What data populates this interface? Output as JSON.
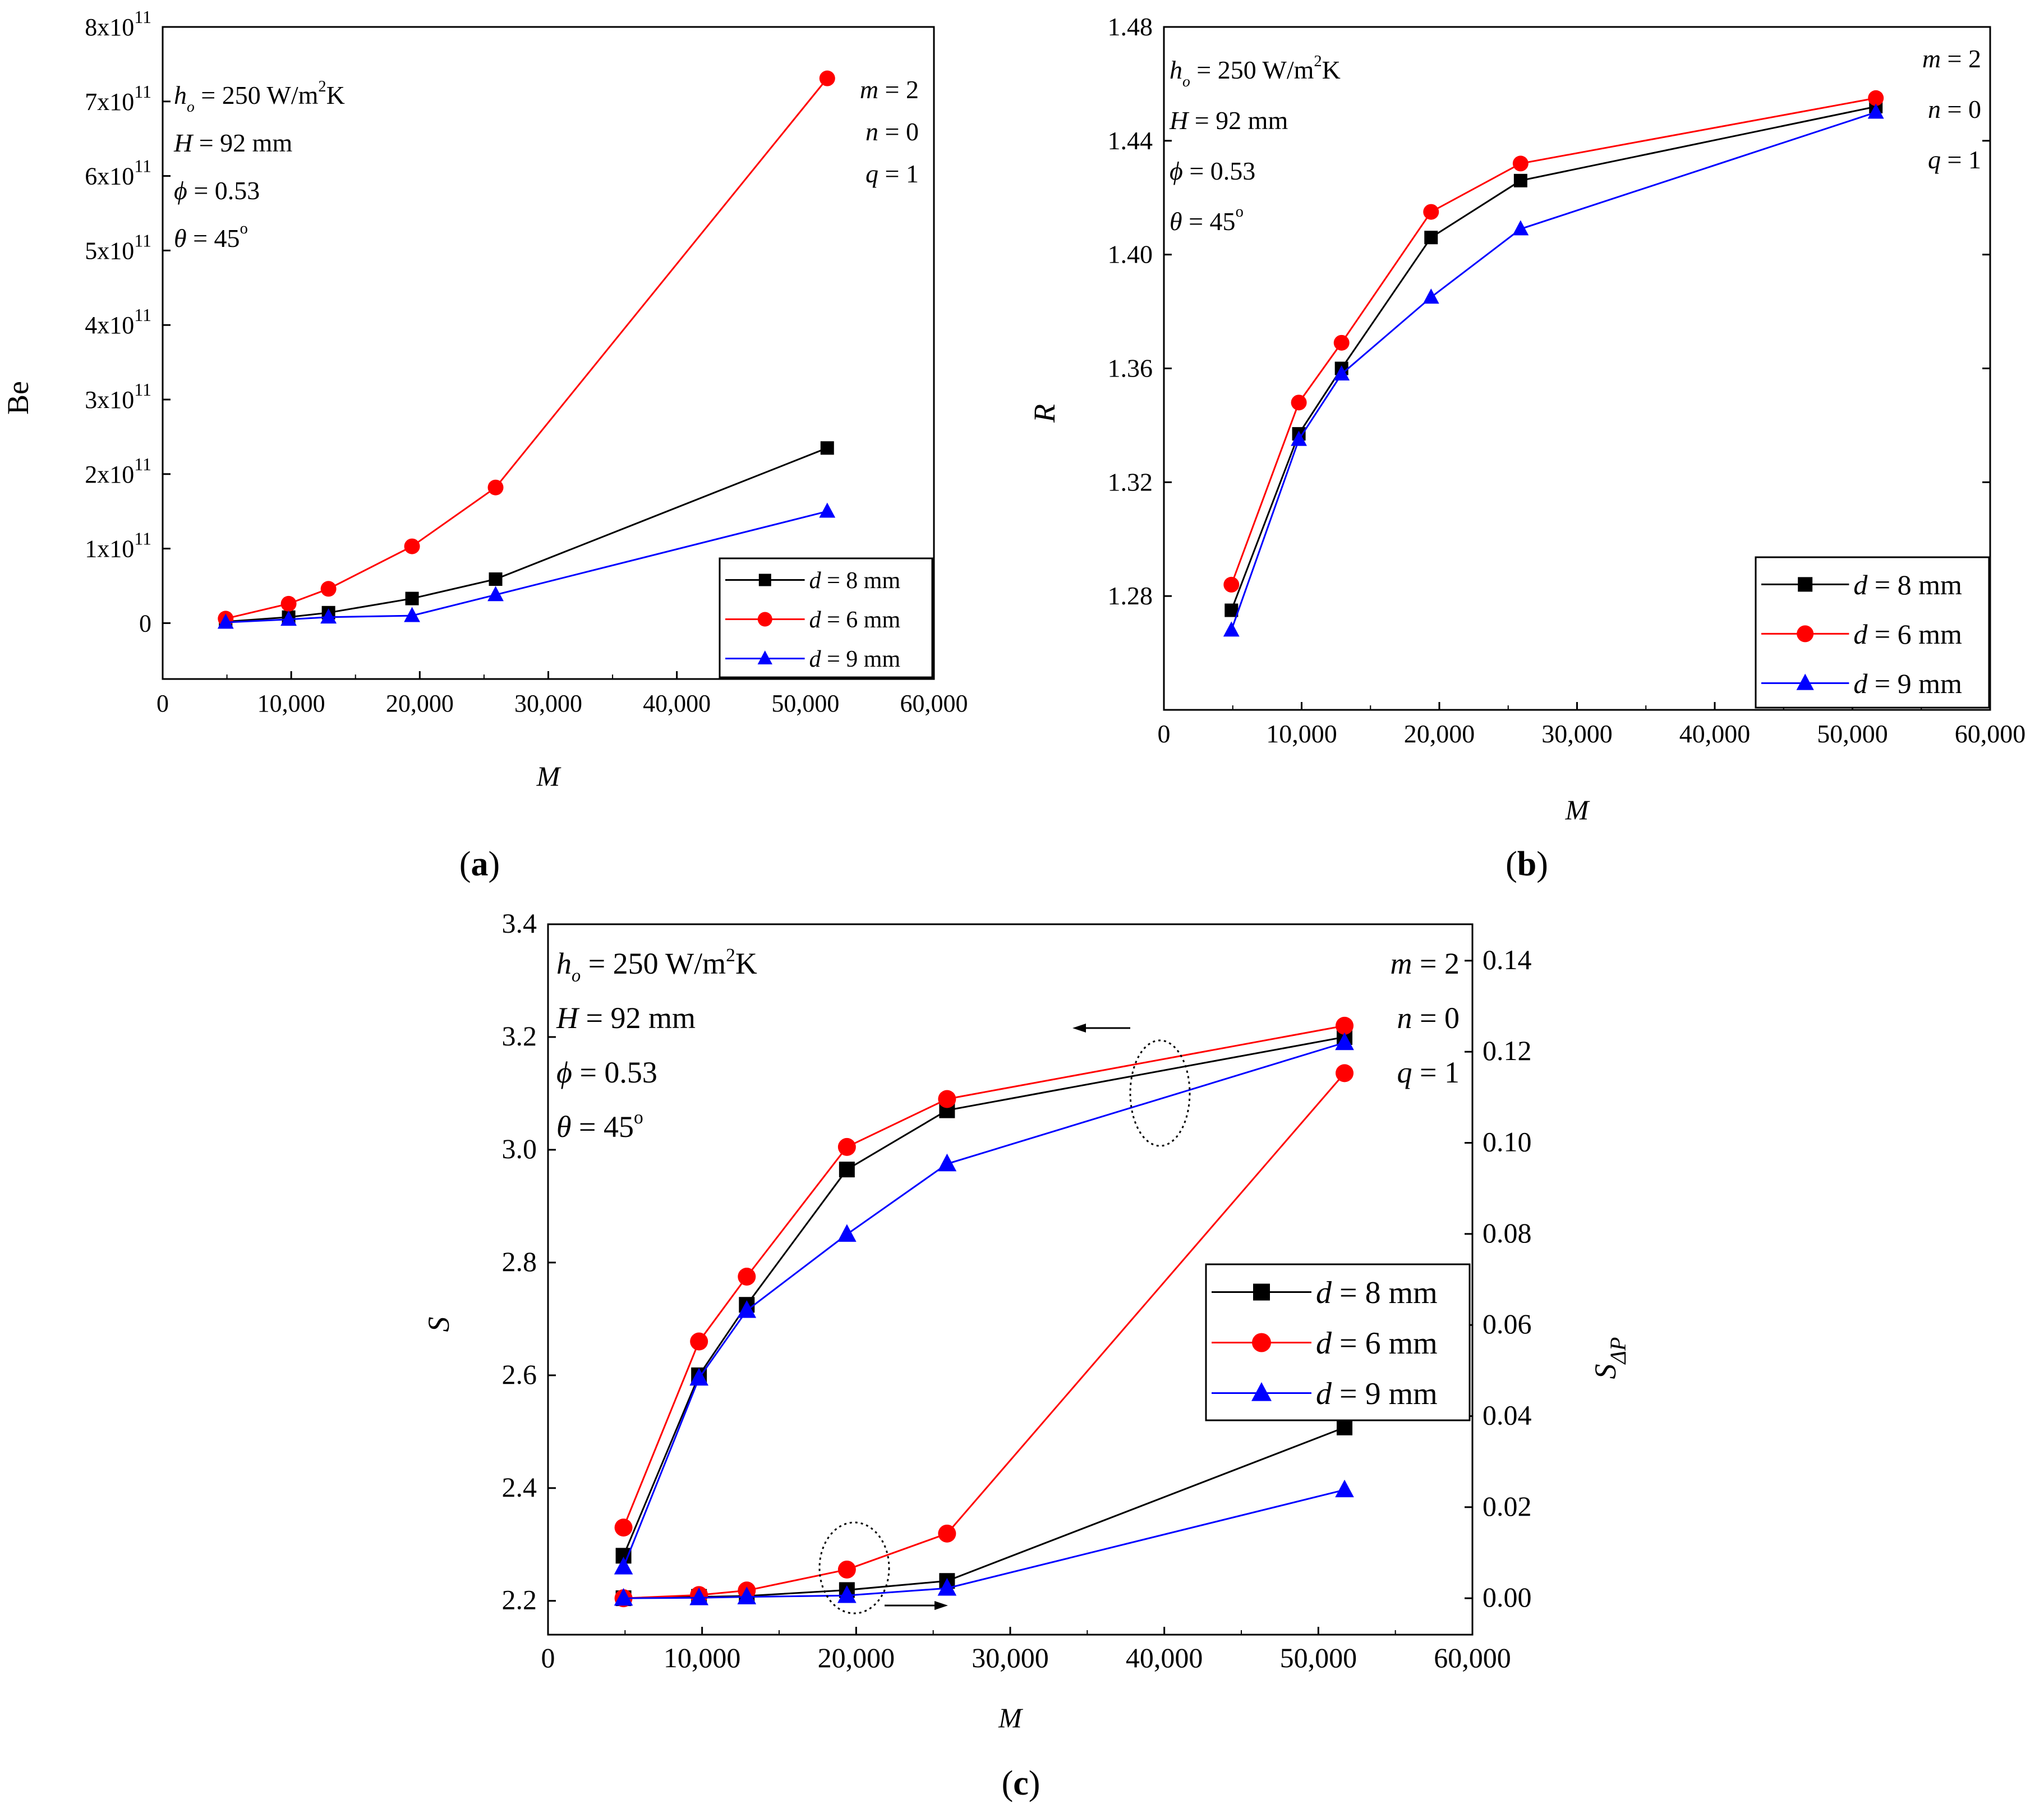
{
  "chart_data": [
    {
      "type": "line",
      "panel_label": "(a)",
      "xlabel": "M",
      "ylabel": "Be",
      "xlim": [
        0,
        60000
      ],
      "ylim": [
        -75000000000,
        800000000000
      ],
      "xticks": [
        0,
        10000,
        20000,
        30000,
        40000,
        50000,
        60000
      ],
      "xtick_labels": [
        "0",
        "10,000",
        "20,000",
        "30,000",
        "40,000",
        "50,000",
        "60,000"
      ],
      "yticks": [
        0,
        100000000000,
        200000000000,
        300000000000,
        400000000000,
        500000000000,
        600000000000,
        700000000000,
        800000000000
      ],
      "ytick_labels": [
        {
          "base": "0",
          "exp": ""
        },
        {
          "base": "1x10",
          "exp": "11"
        },
        {
          "base": "2x10",
          "exp": "11"
        },
        {
          "base": "3x10",
          "exp": "11"
        },
        {
          "base": "4x10",
          "exp": "11"
        },
        {
          "base": "5x10",
          "exp": "11"
        },
        {
          "base": "6x10",
          "exp": "11"
        },
        {
          "base": "7x10",
          "exp": "11"
        },
        {
          "base": "8x10",
          "exp": "11"
        }
      ],
      "annotations_left": [
        "h_o = 250 W/m²K",
        "H = 92 mm",
        "ϕ = 0.53",
        "θ = 45°"
      ],
      "annotations_right": [
        "m = 2",
        "n = 0",
        "q = 1"
      ],
      "legend_position": "bottom-right",
      "x": [
        4900,
        9800,
        12900,
        19400,
        25900,
        51700
      ],
      "series": [
        {
          "name": "d = 8 mm",
          "color": "#000000",
          "marker": "square",
          "values": [
            2000000000,
            8000000000,
            14000000000,
            33000000000,
            59000000000,
            235000000000
          ]
        },
        {
          "name": "d = 6 mm",
          "color": "#ff0000",
          "marker": "circle",
          "values": [
            6000000000,
            26000000000,
            46000000000,
            103000000000,
            182000000000,
            731000000000
          ]
        },
        {
          "name": "d = 9 mm",
          "color": "#0000ff",
          "marker": "triangle",
          "values": [
            1000000000,
            5000000000,
            8000000000,
            10000000000,
            38000000000,
            150000000000
          ]
        }
      ]
    },
    {
      "type": "line",
      "panel_label": "(b)",
      "xlabel": "M",
      "ylabel": "R",
      "xlim": [
        0,
        60000
      ],
      "ylim": [
        1.24,
        1.48
      ],
      "xticks": [
        0,
        10000,
        20000,
        30000,
        40000,
        50000,
        60000
      ],
      "xtick_labels": [
        "0",
        "10,000",
        "20,000",
        "30,000",
        "40,000",
        "50,000",
        "60,000"
      ],
      "yticks": [
        1.28,
        1.32,
        1.36,
        1.4,
        1.44,
        1.48
      ],
      "ytick_labels": [
        "1.28",
        "1.32",
        "1.36",
        "1.40",
        "1.44",
        "1.48"
      ],
      "annotations_left": [
        "h_o = 250 W/m²K",
        "H = 92 mm",
        "ϕ = 0.53",
        "θ = 45°"
      ],
      "annotations_right": [
        "m = 2",
        "n = 0",
        "q = 1"
      ],
      "legend_position": "bottom-right",
      "x": [
        4900,
        9800,
        12900,
        19400,
        25900,
        51700
      ],
      "series": [
        {
          "name": "d = 8 mm",
          "color": "#000000",
          "marker": "square",
          "values": [
            1.275,
            1.337,
            1.36,
            1.406,
            1.426,
            1.452
          ]
        },
        {
          "name": "d = 6 mm",
          "color": "#ff0000",
          "marker": "circle",
          "values": [
            1.284,
            1.348,
            1.369,
            1.415,
            1.432,
            1.455
          ]
        },
        {
          "name": "d = 9 mm",
          "color": "#0000ff",
          "marker": "triangle",
          "values": [
            1.268,
            1.335,
            1.358,
            1.385,
            1.409,
            1.45
          ]
        }
      ]
    },
    {
      "type": "line",
      "panel_label": "(c)",
      "xlabel": "M",
      "ylabel": "S",
      "y2label": "S_ΔP",
      "xlim": [
        0,
        60000
      ],
      "ylim": [
        2.14,
        3.4
      ],
      "y2lim": [
        -0.008,
        0.148
      ],
      "xticks": [
        0,
        10000,
        20000,
        30000,
        40000,
        50000,
        60000
      ],
      "xtick_labels": [
        "0",
        "10,000",
        "20,000",
        "30,000",
        "40,000",
        "50,000",
        "60,000"
      ],
      "yticks": [
        2.2,
        2.4,
        2.6,
        2.8,
        3.0,
        3.2,
        3.4
      ],
      "ytick_labels": [
        "2.2",
        "2.4",
        "2.6",
        "2.8",
        "3.0",
        "3.2",
        "3.4"
      ],
      "y2ticks": [
        0.0,
        0.02,
        0.04,
        0.06,
        0.08,
        0.1,
        0.12,
        0.14
      ],
      "y2tick_labels": [
        "0.00",
        "0.02",
        "0.04",
        "0.06",
        "0.08",
        "0.10",
        "0.12",
        "0.14"
      ],
      "annotations_left": [
        "h_o = 250 W/m²K",
        "H = 92 mm",
        "ϕ = 0.53",
        "θ = 45°"
      ],
      "annotations_right": [
        "m = 2",
        "n = 0",
        "q = 1"
      ],
      "legend_position": "right",
      "x": [
        4900,
        9800,
        12900,
        19400,
        25900,
        51700
      ],
      "series": [
        {
          "name": "d = 8 mm",
          "axis": "left",
          "color": "#000000",
          "marker": "square",
          "values": [
            2.28,
            2.6,
            2.725,
            2.965,
            3.07,
            3.2
          ]
        },
        {
          "name": "d = 6 mm",
          "axis": "left",
          "color": "#ff0000",
          "marker": "circle",
          "values": [
            2.33,
            2.66,
            2.775,
            3.005,
            3.09,
            3.22
          ]
        },
        {
          "name": "d = 9 mm",
          "axis": "left",
          "color": "#0000ff",
          "marker": "triangle",
          "values": [
            2.26,
            2.595,
            2.715,
            2.85,
            2.975,
            3.19
          ]
        },
        {
          "name": "d = 8 mm",
          "axis": "right",
          "color": "#000000",
          "marker": "square",
          "values": [
            0.0,
            0.0003,
            0.0005,
            0.0018,
            0.0038,
            0.0375
          ]
        },
        {
          "name": "d = 6 mm",
          "axis": "right",
          "color": "#ff0000",
          "marker": "circle",
          "values": [
            0.0,
            0.0007,
            0.0017,
            0.0063,
            0.0142,
            0.1153
          ]
        },
        {
          "name": "d = 9 mm",
          "axis": "right",
          "color": "#0000ff",
          "marker": "triangle",
          "values": [
            0.0,
            0.0001,
            0.0003,
            0.0006,
            0.0022,
            0.0238
          ]
        }
      ]
    }
  ]
}
